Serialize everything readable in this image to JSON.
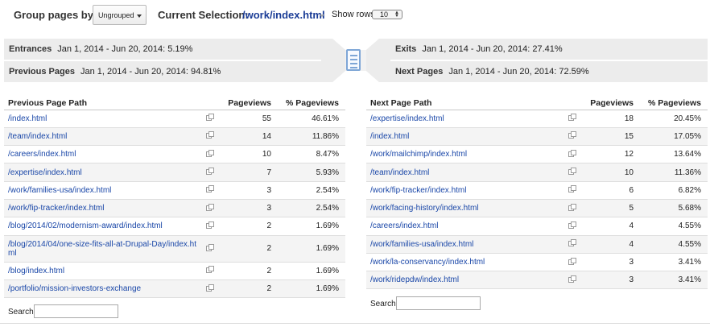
{
  "toolbar": {
    "group_label": "Group pages by:",
    "group_value": "Ungrouped",
    "current_label": "Current Selection:",
    "current_value": "/work/index.html",
    "rows_label": "Show rows:",
    "rows_value": "10"
  },
  "metrics": {
    "entrances": {
      "label": "Entrances",
      "value": "Jan 1, 2014 - Jun 20, 2014: 5.19%"
    },
    "previous": {
      "label": "Previous Pages",
      "value": "Jan 1, 2014 - Jun 20, 2014: 94.81%"
    },
    "exits": {
      "label": "Exits",
      "value": "Jan 1, 2014 - Jun 20, 2014: 27.41%"
    },
    "next": {
      "label": "Next Pages",
      "value": "Jan 1, 2014 - Jun 20, 2014: 72.59%"
    }
  },
  "icons": {
    "page": "page-icon",
    "external": "external-link-icon"
  },
  "previous_table": {
    "headers": [
      "Previous Page Path",
      "Pageviews",
      "% Pageviews"
    ],
    "rows": [
      {
        "path": "/index.html",
        "views": "55",
        "pct": "46.61%"
      },
      {
        "path": "/team/index.html",
        "views": "14",
        "pct": "11.86%"
      },
      {
        "path": "/careers/index.html",
        "views": "10",
        "pct": "8.47%"
      },
      {
        "path": "/expertise/index.html",
        "views": "7",
        "pct": "5.93%"
      },
      {
        "path": "/work/families-usa/index.html",
        "views": "3",
        "pct": "2.54%"
      },
      {
        "path": "/work/fip-tracker/index.html",
        "views": "3",
        "pct": "2.54%"
      },
      {
        "path": "/blog/2014/02/modernism-award/index.html",
        "views": "2",
        "pct": "1.69%"
      },
      {
        "path": "/blog/2014/04/one-size-fits-all-at-Drupal-Day/index.html",
        "views": "2",
        "pct": "1.69%"
      },
      {
        "path": "/blog/index.html",
        "views": "2",
        "pct": "1.69%"
      },
      {
        "path": "/portfolio/mission-investors-exchange",
        "views": "2",
        "pct": "1.69%"
      }
    ]
  },
  "next_table": {
    "headers": [
      "Next Page Path",
      "Pageviews",
      "% Pageviews"
    ],
    "rows": [
      {
        "path": "/expertise/index.html",
        "views": "18",
        "pct": "20.45%"
      },
      {
        "path": "/index.html",
        "views": "15",
        "pct": "17.05%"
      },
      {
        "path": "/work/mailchimp/index.html",
        "views": "12",
        "pct": "13.64%"
      },
      {
        "path": "/team/index.html",
        "views": "10",
        "pct": "11.36%"
      },
      {
        "path": "/work/fip-tracker/index.html",
        "views": "6",
        "pct": "6.82%"
      },
      {
        "path": "/work/facing-history/index.html",
        "views": "5",
        "pct": "5.68%"
      },
      {
        "path": "/careers/index.html",
        "views": "4",
        "pct": "4.55%"
      },
      {
        "path": "/work/families-usa/index.html",
        "views": "4",
        "pct": "4.55%"
      },
      {
        "path": "/work/la-conservancy/index.html",
        "views": "3",
        "pct": "3.41%"
      },
      {
        "path": "/work/ridepdw/index.html",
        "views": "3",
        "pct": "3.41%"
      }
    ]
  },
  "search": {
    "label": "Search:",
    "value": ""
  }
}
